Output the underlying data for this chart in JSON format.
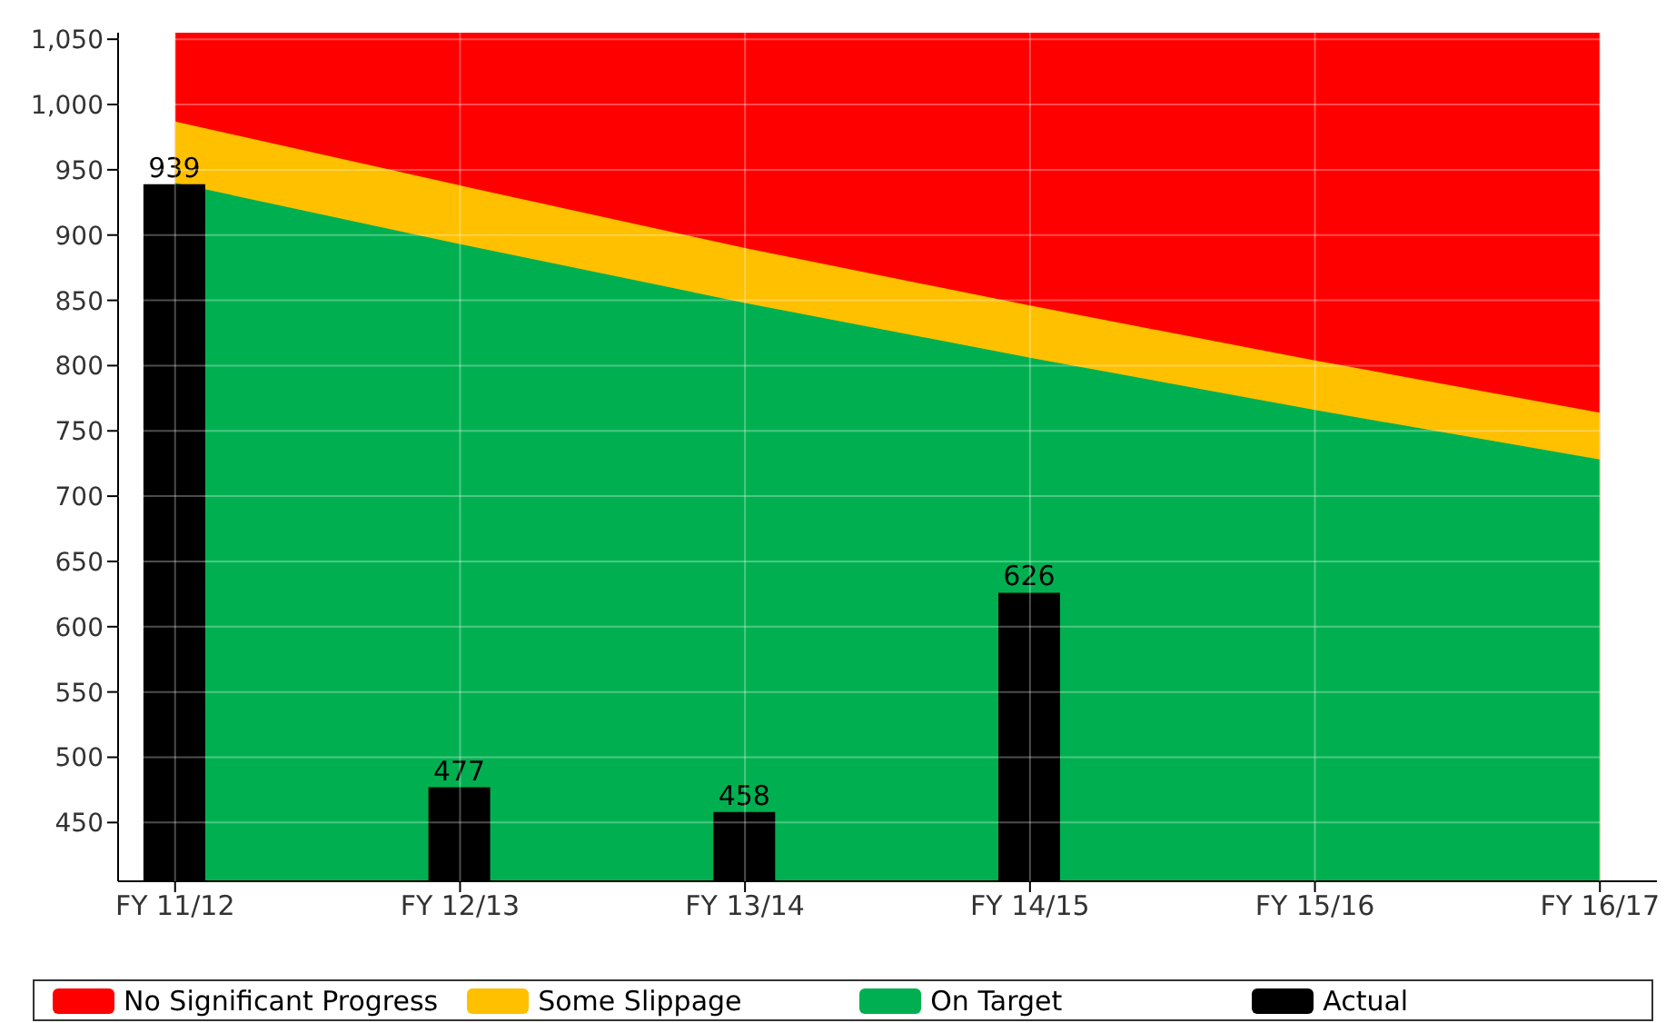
{
  "chart_data": {
    "type": "bar",
    "categories": [
      "FY 11/12",
      "FY 12/13",
      "FY 13/14",
      "FY 14/15",
      "FY 15/16",
      "FY 16/17"
    ],
    "series": [
      {
        "name": "No Significant Progress",
        "type": "area",
        "color": "#ff0000",
        "values": [
          1055,
          1055,
          1055,
          1055,
          1055,
          1055
        ]
      },
      {
        "name": "Some Slippage",
        "type": "area",
        "color": "#ffc000",
        "values": [
          987,
          938,
          890,
          846,
          804,
          764
        ]
      },
      {
        "name": "On Target",
        "type": "area",
        "color": "#00b050",
        "values": [
          940,
          893,
          848,
          806,
          766,
          728
        ]
      },
      {
        "name": "Actual",
        "color": "#000000",
        "values": [
          939,
          477,
          458,
          626,
          null,
          null
        ],
        "value_labels": [
          "939",
          "477",
          "458",
          "626",
          null,
          null
        ]
      }
    ],
    "ylim": [
      405,
      1055
    ],
    "yticks": [
      450,
      500,
      550,
      600,
      650,
      700,
      750,
      800,
      850,
      900,
      950,
      {
        "value": 1000,
        "label": "1,000"
      },
      {
        "value": 1050,
        "label": "1,050"
      }
    ],
    "grid": true,
    "legend": "bottom"
  }
}
